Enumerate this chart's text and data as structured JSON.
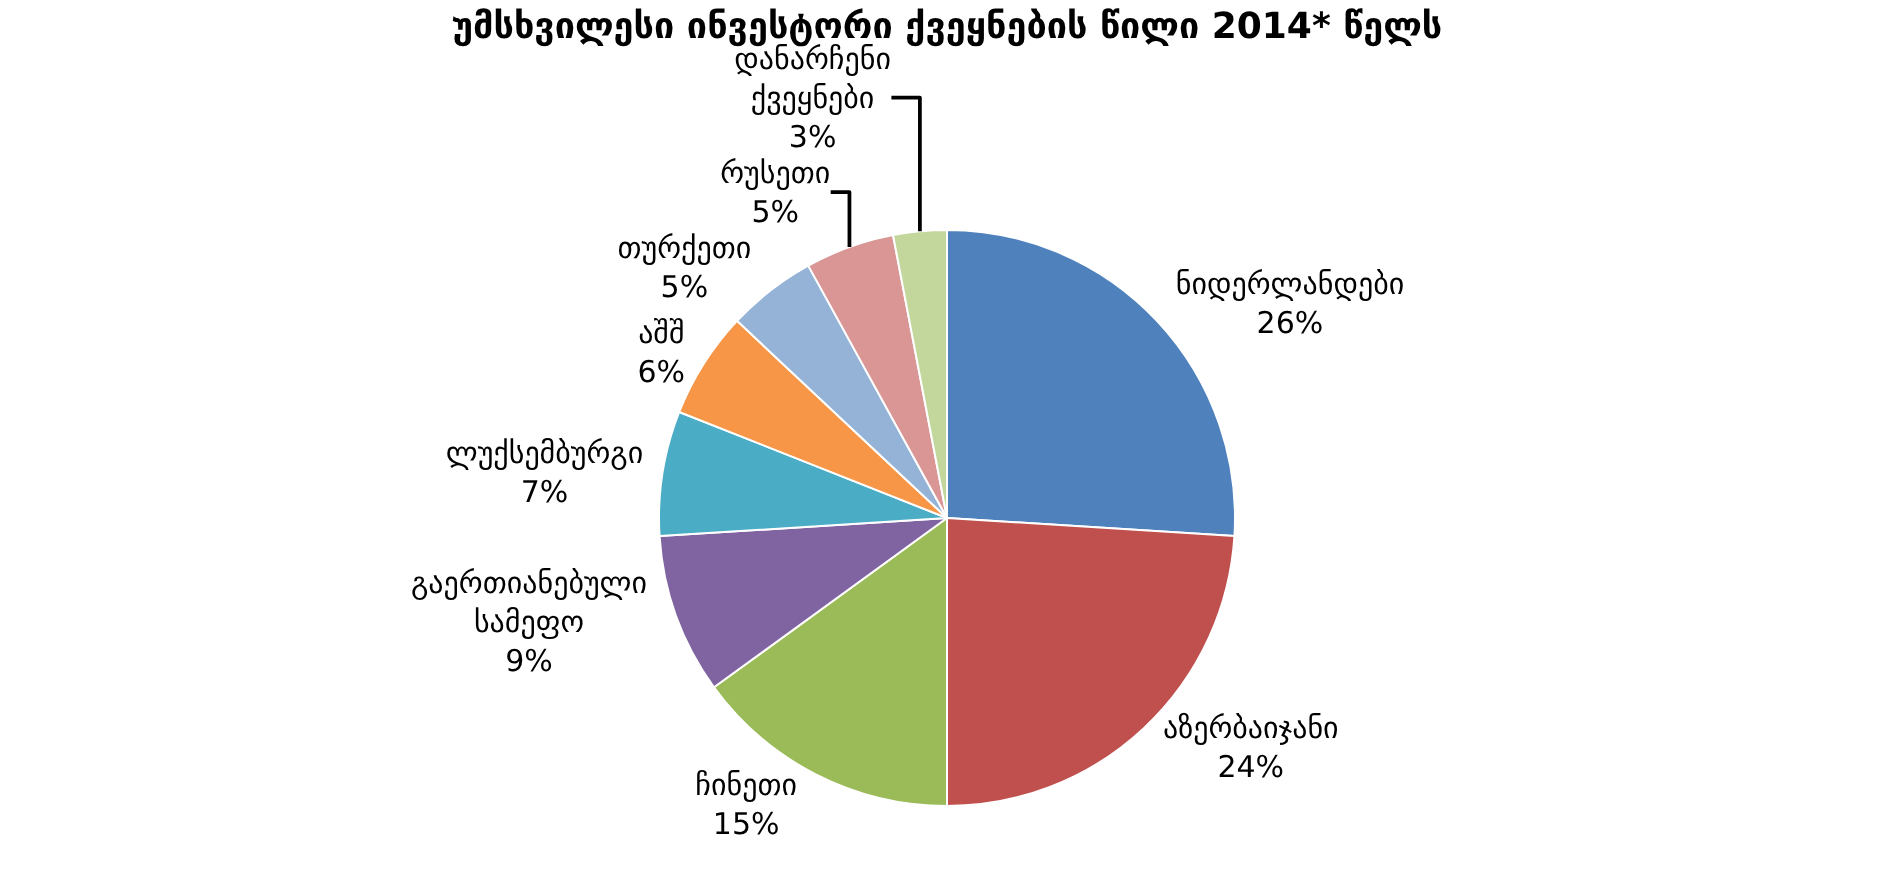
{
  "chart_data": {
    "type": "pie",
    "title": "უმსხვილესი ინვესტორი ქვეყნების წილი 2014* წელს",
    "categories": [
      "ნიდერლანდები",
      "აზერბაიჯანი",
      "ჩინეთი",
      "გაერთიანებული სამეფო",
      "ლუქსემბურგი",
      "აშშ",
      "თურქეთი",
      "რუსეთი",
      "დანარჩენი ქვეყნები"
    ],
    "values": [
      26,
      24,
      15,
      9,
      7,
      6,
      5,
      5,
      3
    ],
    "value_labels": [
      "26%",
      "24%",
      "15%",
      "9%",
      "7%",
      "6%",
      "5%",
      "5%",
      "3%"
    ],
    "colors": [
      "#4f81bd",
      "#c0504d",
      "#9bbb59",
      "#8064a2",
      "#4bacc6",
      "#f79646",
      "#95b3d7",
      "#d99694",
      "#c3d69b"
    ],
    "legend": false
  }
}
